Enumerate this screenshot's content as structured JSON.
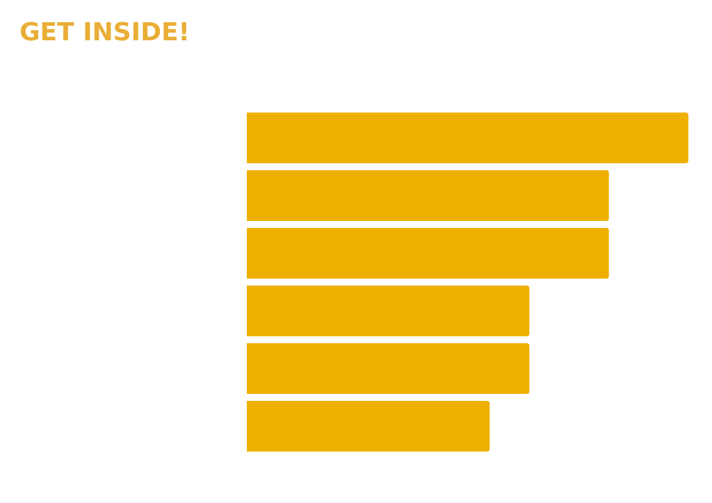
{
  "chart_data": {
    "type": "bar",
    "orientation": "horizontal",
    "title": "GET INSIDE!",
    "title_color": "#e9ae36",
    "categories": [
      null,
      null,
      null,
      null,
      null,
      null
    ],
    "values": [
      100,
      82,
      82,
      64,
      64,
      55
    ],
    "color": "#eeb000",
    "xlim": [
      0,
      100
    ],
    "grid": false
  }
}
